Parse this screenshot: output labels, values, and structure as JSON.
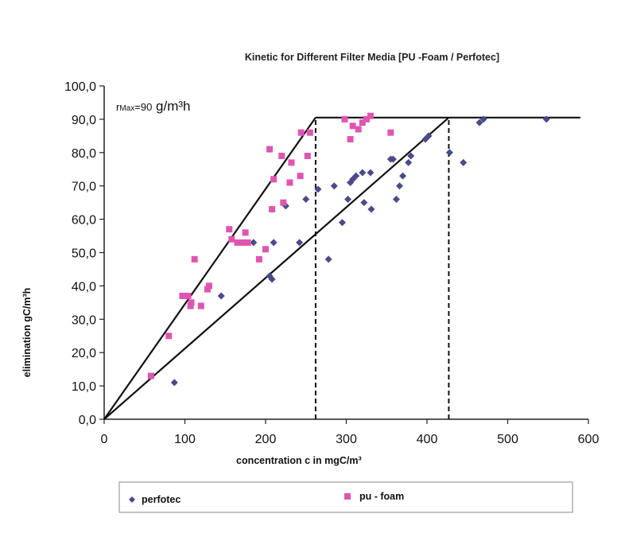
{
  "chart_data": {
    "type": "scatter",
    "title": "Kinetic for Different Filter Media [PU -Foam / Perfotec]",
    "xlabel": "concentration c in mgC/m³",
    "ylabel": "elimination gC/m³h",
    "xlim": [
      0,
      600
    ],
    "ylim": [
      0,
      100
    ],
    "x_ticks": [
      "0",
      "100",
      "200",
      "300",
      "400",
      "500",
      "600"
    ],
    "y_ticks": [
      "0,0",
      "10,0",
      "20,0",
      "30,0",
      "40,0",
      "50,0",
      "60,0",
      "70,0",
      "80,0",
      "90,0",
      "100,0"
    ],
    "grid": false,
    "legend_position": "bottom",
    "annotation": {
      "prefix": "r",
      "sub": "Max",
      "value": "=90",
      "unit": " g/m³h"
    },
    "series": [
      {
        "name": "perfotec",
        "marker": "diamond",
        "color": "#4a4a8c",
        "points": [
          [
            87,
            11
          ],
          [
            145,
            37
          ],
          [
            185,
            53
          ],
          [
            205,
            43
          ],
          [
            208,
            42
          ],
          [
            210,
            53
          ],
          [
            225,
            64
          ],
          [
            242,
            53
          ],
          [
            250,
            66
          ],
          [
            265,
            69
          ],
          [
            278,
            48
          ],
          [
            285,
            70
          ],
          [
            295,
            59
          ],
          [
            302,
            66
          ],
          [
            305,
            71
          ],
          [
            308,
            72
          ],
          [
            312,
            73
          ],
          [
            320,
            74
          ],
          [
            322,
            65
          ],
          [
            330,
            74
          ],
          [
            331,
            63
          ],
          [
            355,
            78
          ],
          [
            358,
            78
          ],
          [
            362,
            66
          ],
          [
            366,
            70
          ],
          [
            370,
            73
          ],
          [
            377,
            77
          ],
          [
            380,
            79
          ],
          [
            398,
            84
          ],
          [
            402,
            85
          ],
          [
            428,
            80
          ],
          [
            445,
            77
          ],
          [
            465,
            89
          ],
          [
            470,
            90
          ],
          [
            548,
            90
          ]
        ]
      },
      {
        "name": "pu - foam",
        "marker": "square",
        "color": "#e055b0",
        "points": [
          [
            58,
            13
          ],
          [
            80,
            25
          ],
          [
            97,
            37
          ],
          [
            104,
            37
          ],
          [
            107,
            34
          ],
          [
            108,
            35
          ],
          [
            112,
            48
          ],
          [
            120,
            34
          ],
          [
            128,
            39
          ],
          [
            130,
            40
          ],
          [
            155,
            57
          ],
          [
            158,
            54
          ],
          [
            165,
            53
          ],
          [
            172,
            53
          ],
          [
            175,
            56
          ],
          [
            178,
            53
          ],
          [
            192,
            48
          ],
          [
            200,
            51
          ],
          [
            205,
            81
          ],
          [
            208,
            63
          ],
          [
            210,
            72
          ],
          [
            220,
            79
          ],
          [
            222,
            65
          ],
          [
            230,
            71
          ],
          [
            232,
            77
          ],
          [
            243,
            73
          ],
          [
            244,
            86
          ],
          [
            252,
            79
          ],
          [
            255,
            86
          ],
          [
            298,
            90
          ],
          [
            305,
            84
          ],
          [
            308,
            88
          ],
          [
            315,
            87
          ],
          [
            320,
            89
          ],
          [
            325,
            90
          ],
          [
            330,
            91
          ],
          [
            355,
            86
          ]
        ]
      }
    ],
    "lines": [
      {
        "from": [
          0,
          0
        ],
        "to": [
          262,
          90.5
        ]
      },
      {
        "from": [
          0,
          0
        ],
        "to": [
          427,
          90.5
        ]
      },
      {
        "from": [
          262,
          90.5
        ],
        "to": [
          590,
          90.5
        ]
      }
    ],
    "dashed_lines": [
      {
        "from": [
          262,
          0
        ],
        "to": [
          262,
          90.5
        ]
      },
      {
        "from": [
          427,
          0
        ],
        "to": [
          427,
          90.5
        ]
      }
    ]
  }
}
